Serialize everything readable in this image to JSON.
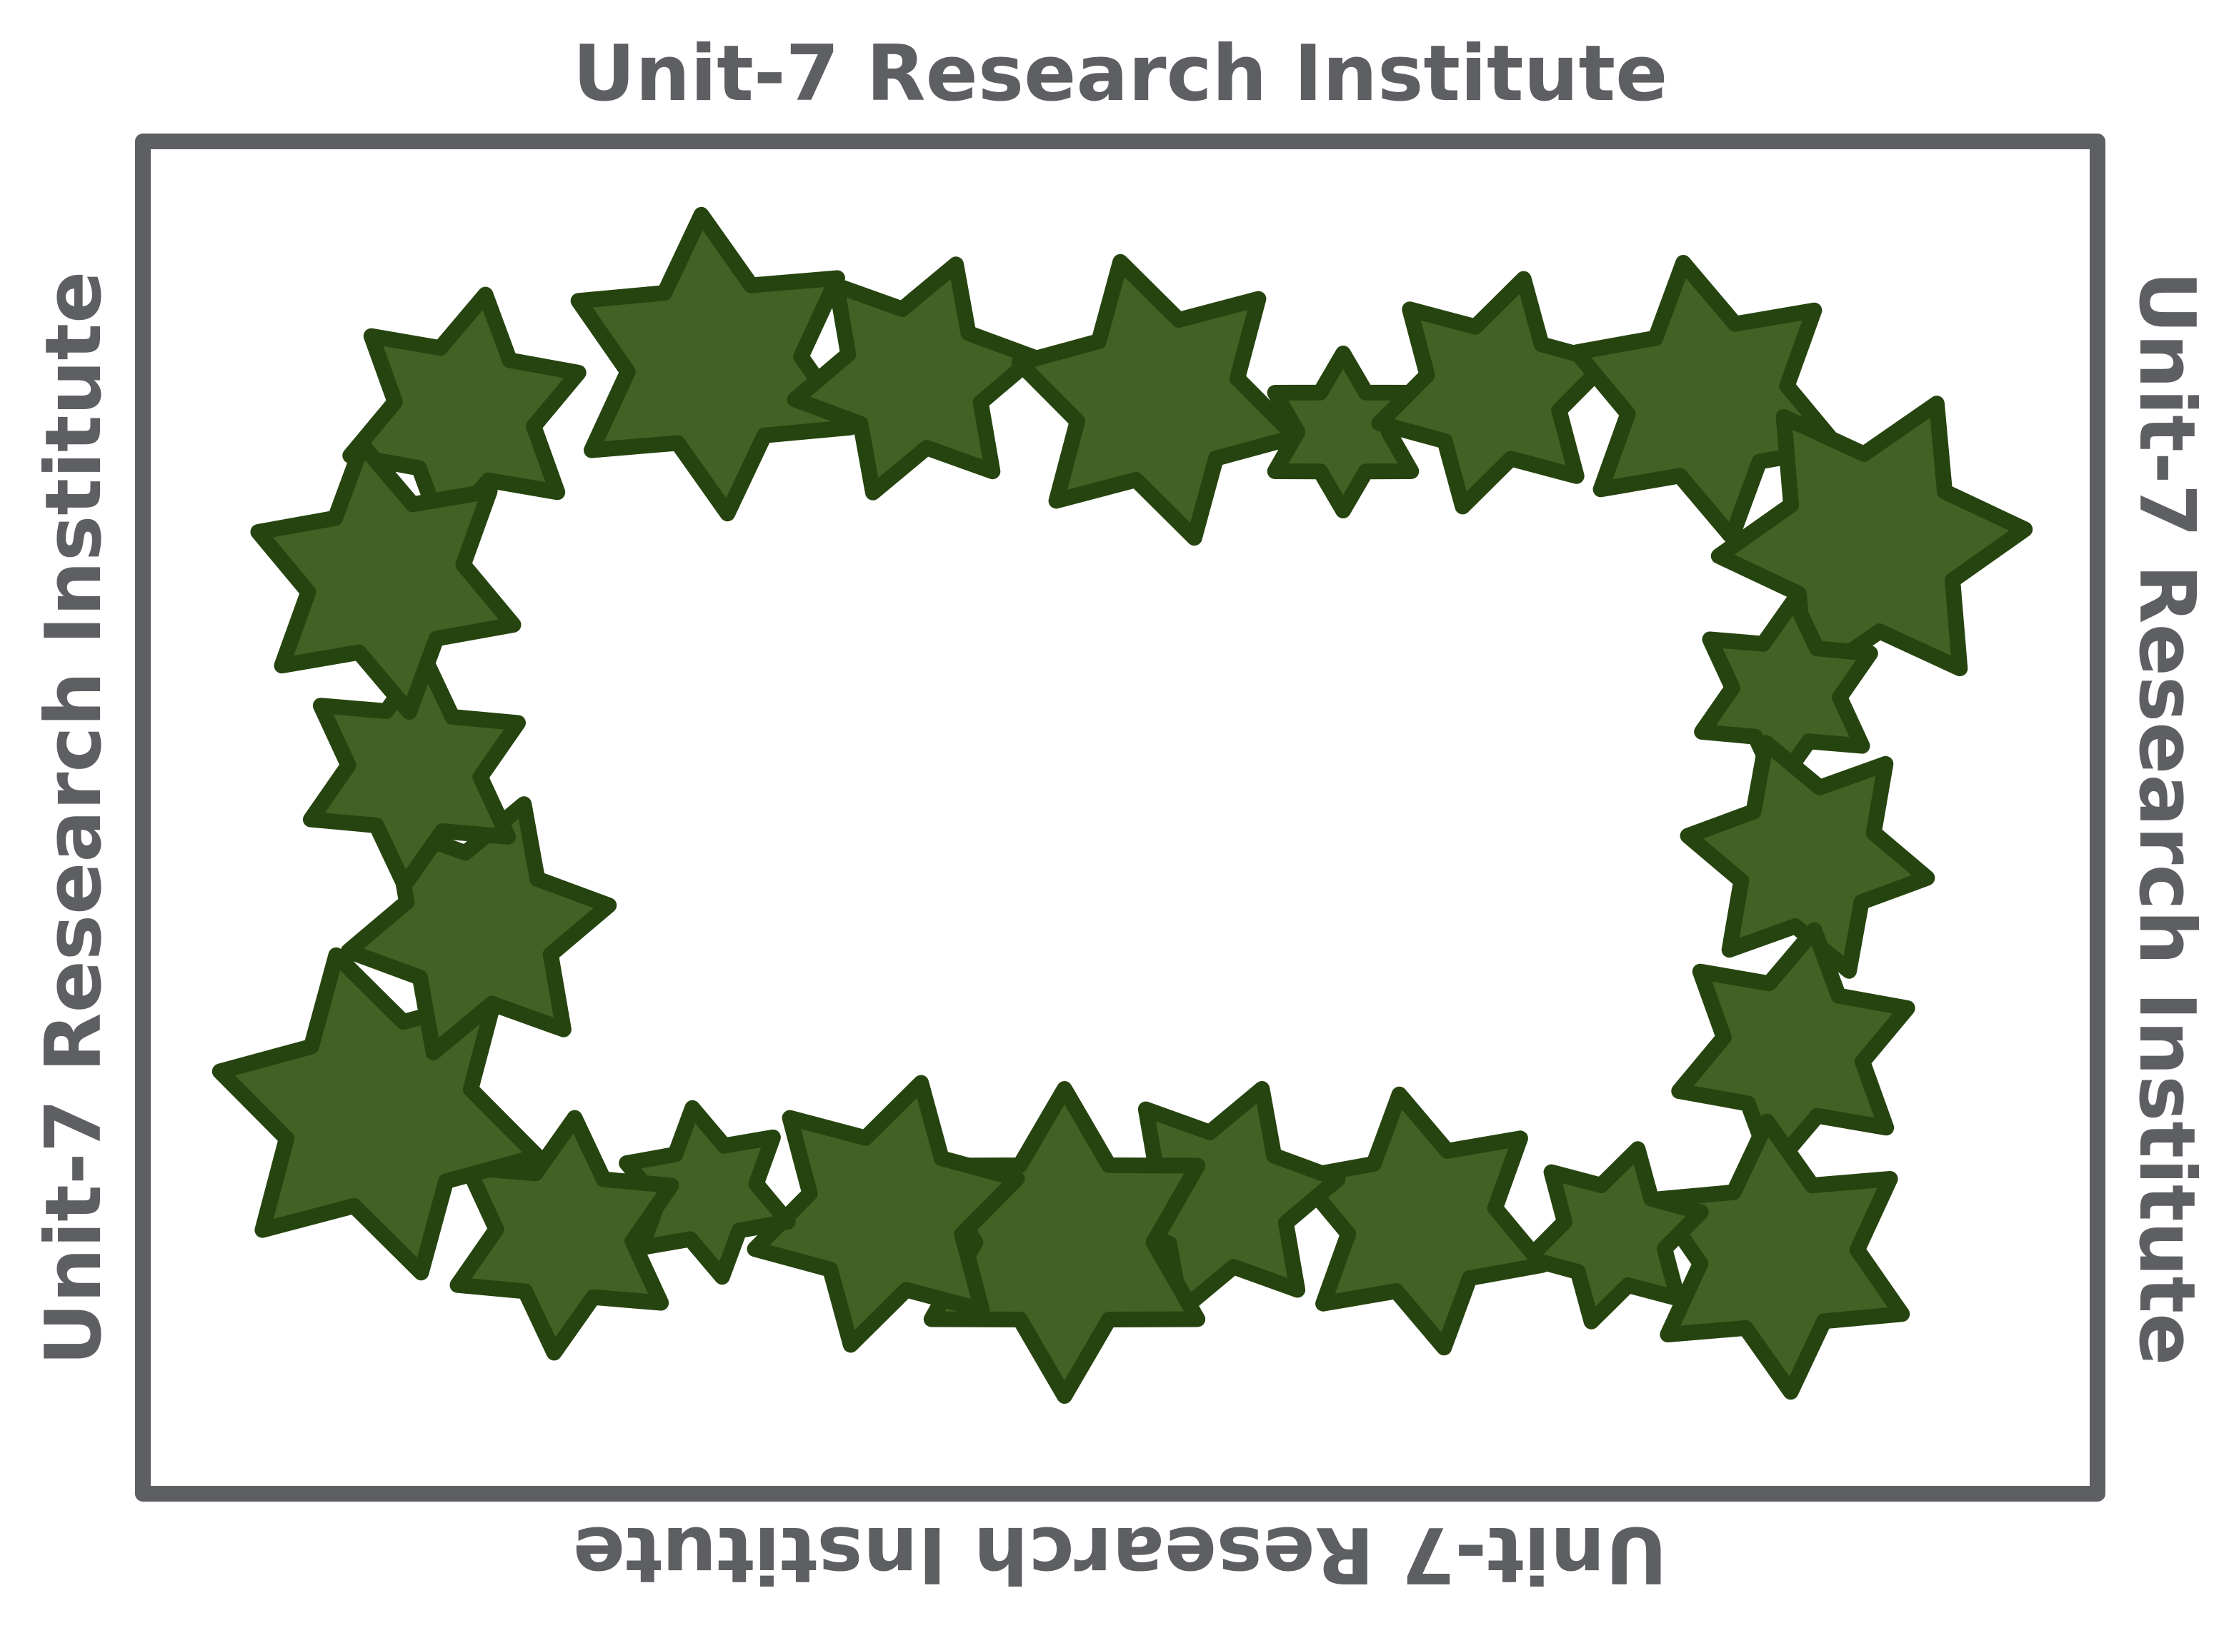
{
  "sign": {
    "title_top": "Unit-7 Research Institute",
    "title_bottom": "Unit-7 Research Institute",
    "title_left": "Unit-7 Research Institute",
    "title_right": "Unit-7 Research Institute"
  },
  "colors": {
    "background": "#ffffff",
    "text": "#5d5f63",
    "frame": "#5d5f63",
    "star_fill": "#406225",
    "star_outline": "#26440f"
  },
  "decoration": {
    "shape": "six-pointed star",
    "arrangement": "rectangular wreath"
  }
}
